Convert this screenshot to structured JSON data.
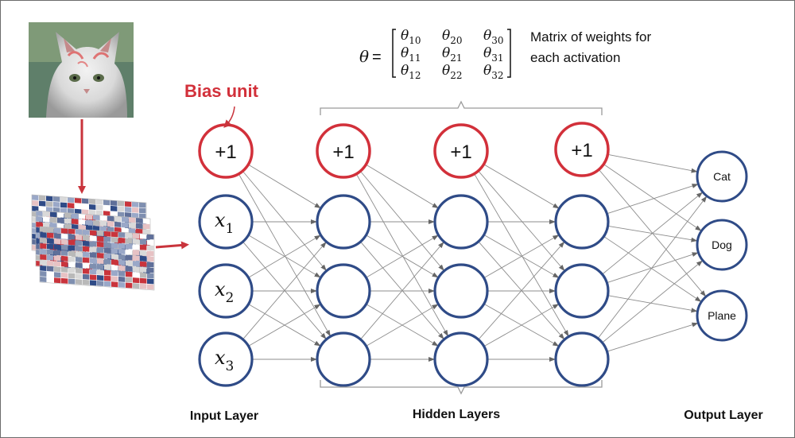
{
  "colors": {
    "node_stroke": "#2f4b87",
    "bias_stroke": "#d2303a",
    "edge": "#8c8c8c",
    "arrow": "#c9343c",
    "brace": "#9a9a9a",
    "text": "#111111"
  },
  "bias_label": "Bias unit",
  "bias_text": "+1",
  "matrix": {
    "theta_symbol": "θ",
    "equals": "=",
    "rows": [
      [
        {
          "base": "θ",
          "sub": "10"
        },
        {
          "base": "θ",
          "sub": "20"
        },
        {
          "base": "θ",
          "sub": "30"
        }
      ],
      [
        {
          "base": "θ",
          "sub": "11"
        },
        {
          "base": "θ",
          "sub": "21"
        },
        {
          "base": "θ",
          "sub": "31"
        }
      ],
      [
        {
          "base": "θ",
          "sub": "12"
        },
        {
          "base": "θ",
          "sub": "22"
        },
        {
          "base": "θ",
          "sub": "32"
        }
      ]
    ],
    "caption_line1": "Matrix of weights for",
    "caption_line2": "each activation"
  },
  "inputs": [
    {
      "base": "x",
      "sub": "1"
    },
    {
      "base": "x",
      "sub": "2"
    },
    {
      "base": "x",
      "sub": "3"
    }
  ],
  "outputs": [
    "Cat",
    "Dog",
    "Plane"
  ],
  "layer_labels": {
    "input": "Input Layer",
    "hidden": "Hidden Layers",
    "output": "Output Layer"
  },
  "images": {
    "cat_photo": "cat-photo",
    "pixel_planes": "pixel-channel-planes"
  }
}
